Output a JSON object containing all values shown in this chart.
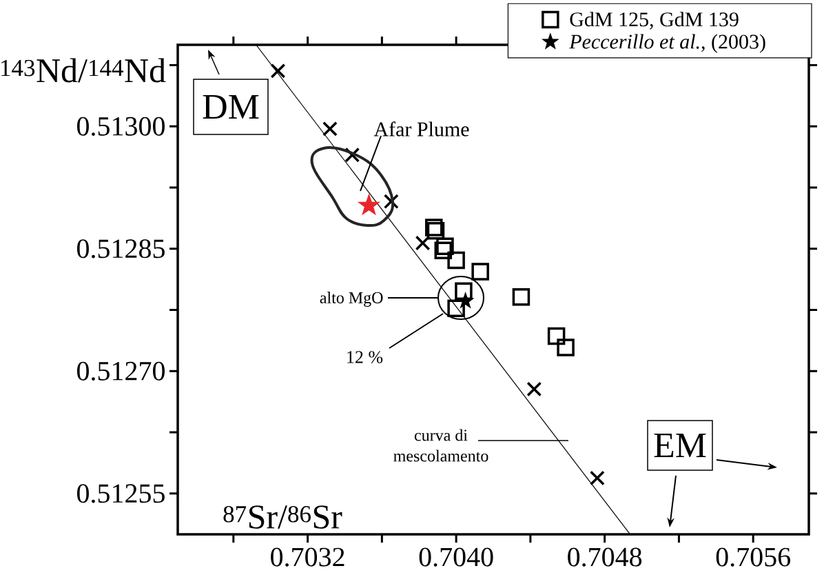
{
  "chart_data": {
    "type": "scatter",
    "xlabel": "$^{87}$Sr/$^{86}$Sr",
    "ylabel": "$^{143}$Nd/$^{144}$Nd",
    "xlim": [
      0.7025,
      0.7059
    ],
    "ylim": [
      0.5125,
      0.5131
    ],
    "xticks": [
      {
        "value": 0.7028,
        "label": null
      },
      {
        "value": 0.7032,
        "label": "0.7032"
      },
      {
        "value": 0.7036,
        "label": null
      },
      {
        "value": 0.704,
        "label": "0.7040"
      },
      {
        "value": 0.7044,
        "label": null
      },
      {
        "value": 0.7048,
        "label": "0.7048"
      },
      {
        "value": 0.7052,
        "label": null
      },
      {
        "value": 0.7056,
        "label": "0.7056"
      }
    ],
    "yticks": [
      {
        "value": 0.51255,
        "label": "0.51255"
      },
      {
        "value": 0.512625,
        "label": null
      },
      {
        "value": 0.5127,
        "label": "0.51270"
      },
      {
        "value": 0.512775,
        "label": null
      },
      {
        "value": 0.51285,
        "label": "0.51285"
      },
      {
        "value": 0.512925,
        "label": null
      },
      {
        "value": 0.513,
        "label": "0.51300"
      },
      {
        "value": 0.513075,
        "label": null
      }
    ],
    "grid": false,
    "legend": "top right",
    "series": [
      {
        "type": "line",
        "color": "#000000",
        "marker": "none",
        "line_style": "solid",
        "x": [
          0.702922,
          0.704937
        ],
        "values": [
          0.5131,
          0.5125
        ]
      },
      {
        "color": "#000000",
        "marker": "cross",
        "x": [
          0.70304,
          0.70332,
          0.70344,
          0.70365,
          0.70382,
          0.70442,
          0.70476
        ],
        "values": [
          0.513068,
          0.512997,
          0.512965,
          0.512908,
          0.512857,
          0.512678,
          0.512569
        ]
      },
      {
        "name": "GdM 125, GdM 139",
        "color": "#000000",
        "marker": "square",
        "x": [
          0.70388,
          0.70389,
          0.70394,
          0.70393,
          0.704,
          0.70413,
          0.70404,
          0.704,
          0.70435,
          0.70454,
          0.70459
        ],
        "values": [
          0.512876,
          0.512872,
          0.512853,
          0.512848,
          0.512836,
          0.512822,
          0.512798,
          0.512777,
          0.512791,
          0.512743,
          0.512729
        ]
      },
      {
        "name": "*Peccerillo et al.*, (2003)",
        "color": "#000000",
        "marker": "star",
        "x": [
          0.70405
        ],
        "values": [
          0.512786
        ]
      },
      {
        "color": "#e8262a",
        "marker": "star",
        "x": [
          0.70353
        ],
        "values": [
          0.512903
        ]
      }
    ],
    "annotations": [
      "DM",
      "EM",
      "Afar Plume",
      "alto MgO",
      "12 %",
      "curva di mescolamento"
    ]
  }
}
